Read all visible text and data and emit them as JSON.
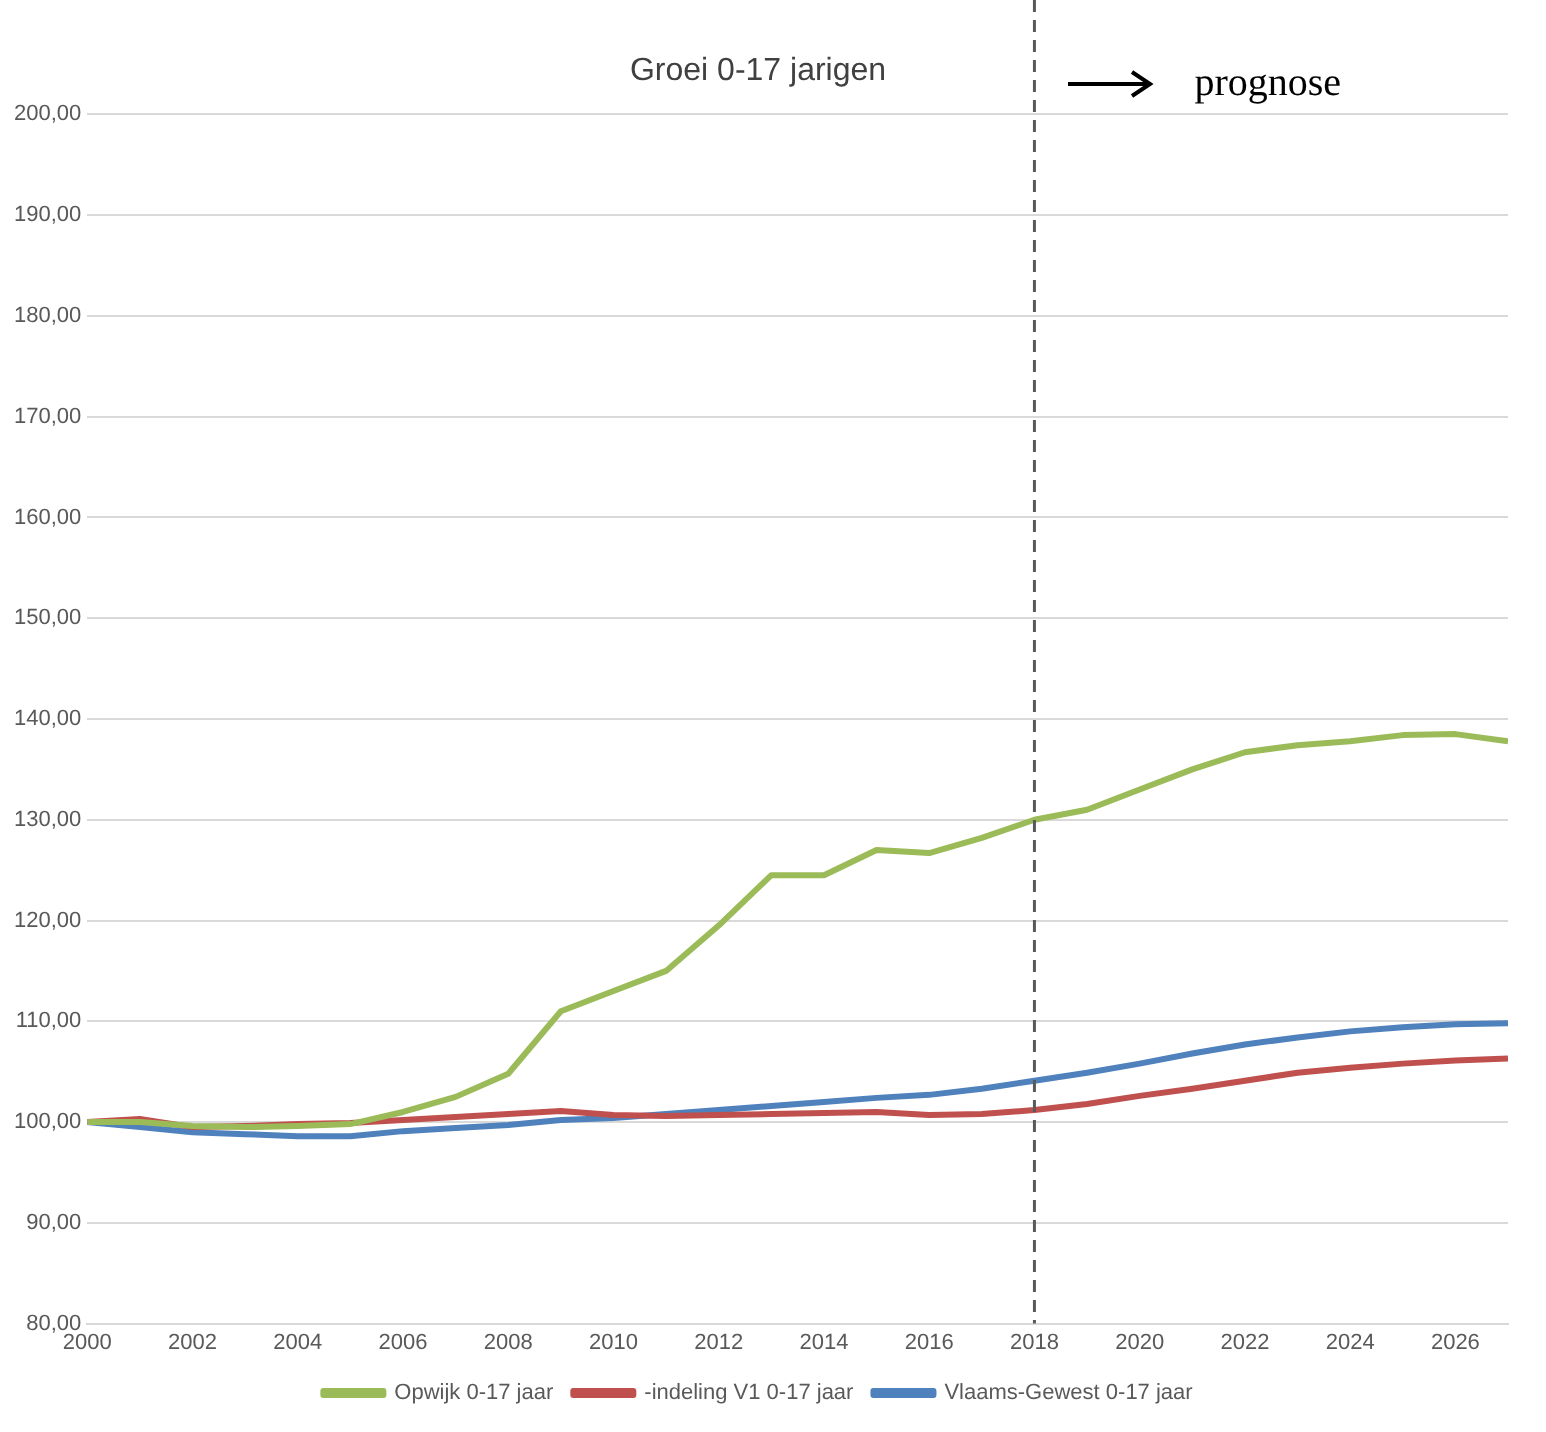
{
  "chart_data": {
    "type": "line",
    "title": "Groei 0-17 jarigen",
    "x": [
      2000,
      2001,
      2002,
      2003,
      2004,
      2005,
      2006,
      2007,
      2008,
      2009,
      2010,
      2011,
      2012,
      2013,
      2014,
      2015,
      2016,
      2017,
      2018,
      2019,
      2020,
      2021,
      2022,
      2023,
      2024,
      2025,
      2026,
      2027
    ],
    "series": [
      {
        "name": "Opwijk 0-17 jaar",
        "color": "#9bbb59",
        "values": [
          100,
          100,
          99.6,
          99.5,
          99.6,
          99.8,
          101,
          102.5,
          104.8,
          111,
          113,
          115,
          119.5,
          124.5,
          124.5,
          127,
          126.7,
          128.2,
          130,
          131,
          133,
          135,
          136.7,
          137.4,
          137.8,
          138.4,
          138.5,
          137.8
        ]
      },
      {
        "name": "-indeling V1 0-17 jaar",
        "color": "#c0504d",
        "values": [
          100,
          100.3,
          99.5,
          99.6,
          99.8,
          99.9,
          100.2,
          100.5,
          100.8,
          101.1,
          100.7,
          100.6,
          100.7,
          100.8,
          100.9,
          101,
          100.7,
          100.8,
          101.2,
          101.8,
          102.6,
          103.3,
          104.1,
          104.9,
          105.4,
          105.8,
          106.1,
          106.3
        ]
      },
      {
        "name": "Vlaams-Gewest 0-17 jaar",
        "color": "#4f81bd",
        "values": [
          100,
          99.5,
          99,
          98.8,
          98.6,
          98.6,
          99.1,
          99.4,
          99.7,
          100.2,
          100.4,
          100.8,
          101.2,
          101.6,
          102,
          102.4,
          102.7,
          103.3,
          104.1,
          104.9,
          105.8,
          106.8,
          107.7,
          108.4,
          109,
          109.4,
          109.7,
          109.8
        ]
      }
    ],
    "xlim": [
      2000,
      2027
    ],
    "xticks": [
      2000,
      2002,
      2004,
      2006,
      2008,
      2010,
      2012,
      2014,
      2016,
      2018,
      2020,
      2022,
      2024,
      2026
    ],
    "ylim": [
      80,
      200
    ],
    "yticks": [
      {
        "value": 80,
        "label": "80,00"
      },
      {
        "value": 90,
        "label": "90,00"
      },
      {
        "value": 100,
        "label": "100,00"
      },
      {
        "value": 110,
        "label": "110,00"
      },
      {
        "value": 120,
        "label": "120,00"
      },
      {
        "value": 130,
        "label": "130,00"
      },
      {
        "value": 140,
        "label": "140,00"
      },
      {
        "value": 150,
        "label": "150,00"
      },
      {
        "value": 160,
        "label": "160,00"
      },
      {
        "value": 170,
        "label": "170,00"
      },
      {
        "value": 180,
        "label": "180,00"
      },
      {
        "value": 190,
        "label": "190,00"
      },
      {
        "value": 200,
        "label": "200,00"
      }
    ],
    "ref_lines": [
      {
        "axis": "x",
        "value": 2018,
        "color": "#595959",
        "line_style": "dashed"
      }
    ],
    "annotations": [
      "prognose"
    ],
    "grid": "y",
    "legend": "bottom",
    "marker": "none",
    "line_style": "solid"
  }
}
